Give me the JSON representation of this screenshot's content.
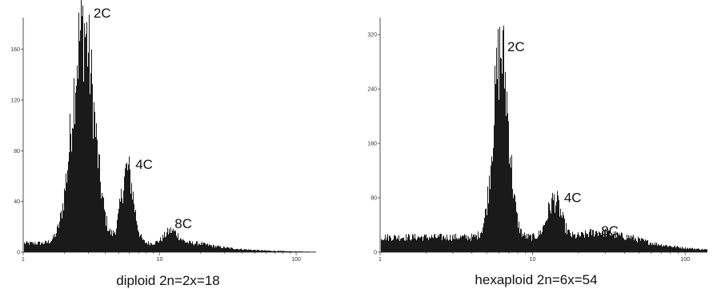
{
  "chart_data": [
    {
      "type": "bar",
      "title": "",
      "caption": "diploid 2n=2x=18",
      "xlabel": "",
      "ylabel": "",
      "xscale": "log",
      "xlim": [
        1,
        140
      ],
      "ylim": [
        0,
        185
      ],
      "xticks": [
        1,
        10,
        100
      ],
      "yticks": [
        0,
        40,
        80,
        120,
        160
      ],
      "bar_color": "#1a1a1a",
      "background": 7,
      "peaks": [
        {
          "label": "2C",
          "x": 2.75,
          "height": 170,
          "sigma": 0.08
        },
        {
          "label": "4C",
          "x": 5.8,
          "height": 58,
          "sigma": 0.045
        },
        {
          "label": "8C",
          "x": 12.2,
          "height": 10,
          "sigma": 0.05
        }
      ]
    },
    {
      "type": "bar",
      "title": "",
      "caption": "hexaploid 2n=6x=54",
      "xlabel": "",
      "ylabel": "",
      "xscale": "log",
      "xlim": [
        1,
        140
      ],
      "ylim": [
        0,
        345
      ],
      "xticks": [
        1,
        10,
        100
      ],
      "yticks": [
        0,
        80,
        160,
        240,
        320
      ],
      "bar_color": "#1a1a1a",
      "background": 22,
      "peaks": [
        {
          "label": "2C",
          "x": 6.2,
          "height": 272,
          "sigma": 0.05
        },
        {
          "label": "4C",
          "x": 13.9,
          "height": 55,
          "sigma": 0.045
        },
        {
          "label": "8C",
          "x": 27.5,
          "height": 8,
          "sigma": 0.08
        }
      ]
    }
  ]
}
